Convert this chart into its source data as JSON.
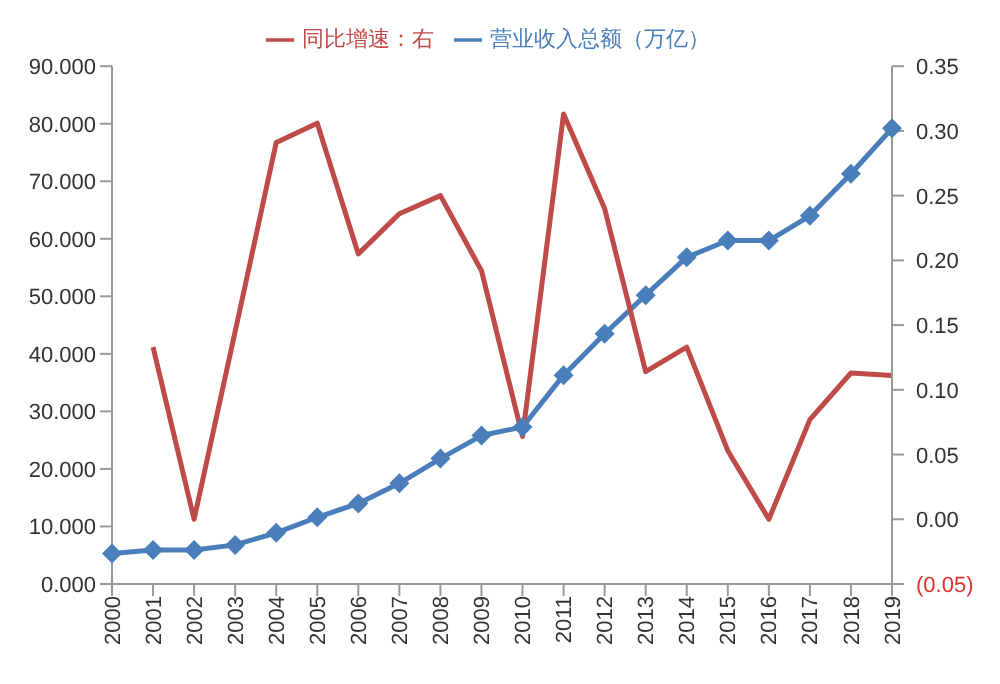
{
  "chart_data": {
    "type": "line",
    "categories": [
      "2000",
      "2001",
      "2002",
      "2003",
      "2004",
      "2005",
      "2006",
      "2007",
      "2008",
      "2009",
      "2010",
      "2011",
      "2012",
      "2013",
      "2014",
      "2015",
      "2016",
      "2017",
      "2018",
      "2019"
    ],
    "series": [
      {
        "name": "营业收入总额（万亿）",
        "color": "#4a7ebb",
        "marker": "diamond",
        "values": [
          5.3,
          5.9,
          5.9,
          6.8,
          8.9,
          11.6,
          14.0,
          17.5,
          21.8,
          25.8,
          27.3,
          36.3,
          43.5,
          50.2,
          56.8,
          59.7,
          59.7,
          64.0,
          71.3,
          79.2
        ]
      },
      {
        "name": "同比增速：右",
        "color": "#be4b48",
        "marker": "none",
        "axis": "y2",
        "values": [
          null,
          0.133,
          0.0,
          0.145,
          0.291,
          0.306,
          0.205,
          0.236,
          0.25,
          0.192,
          0.064,
          0.313,
          0.24,
          0.114,
          0.133,
          0.053,
          0.0,
          0.077,
          0.113,
          0.111
        ]
      }
    ],
    "ylim": [
      0,
      90
    ],
    "yticks": [
      {
        "value": 0,
        "label": "0.000"
      },
      {
        "value": 10,
        "label": "10.000"
      },
      {
        "value": 20,
        "label": "20.000"
      },
      {
        "value": 30,
        "label": "30.000"
      },
      {
        "value": 40,
        "label": "40.000"
      },
      {
        "value": 50,
        "label": "50.000"
      },
      {
        "value": 60,
        "label": "60.000"
      },
      {
        "value": 70,
        "label": "70.000"
      },
      {
        "value": 80,
        "label": "80.000"
      },
      {
        "value": 90,
        "label": "90.000"
      }
    ],
    "y2lim": [
      -0.05,
      0.35
    ],
    "y2ticks": [
      {
        "value": -0.05,
        "label": "(0.05)"
      },
      {
        "value": 0,
        "label": "0.00"
      },
      {
        "value": 0.05,
        "label": "0.05"
      },
      {
        "value": 0.1,
        "label": "0.10"
      },
      {
        "value": 0.15,
        "label": "0.15"
      },
      {
        "value": 0.2,
        "label": "0.20"
      },
      {
        "value": 0.25,
        "label": "0.25"
      },
      {
        "value": 0.3,
        "label": "0.30"
      },
      {
        "value": 0.35,
        "label": "0.35"
      }
    ],
    "grid": false,
    "legend": "top"
  }
}
